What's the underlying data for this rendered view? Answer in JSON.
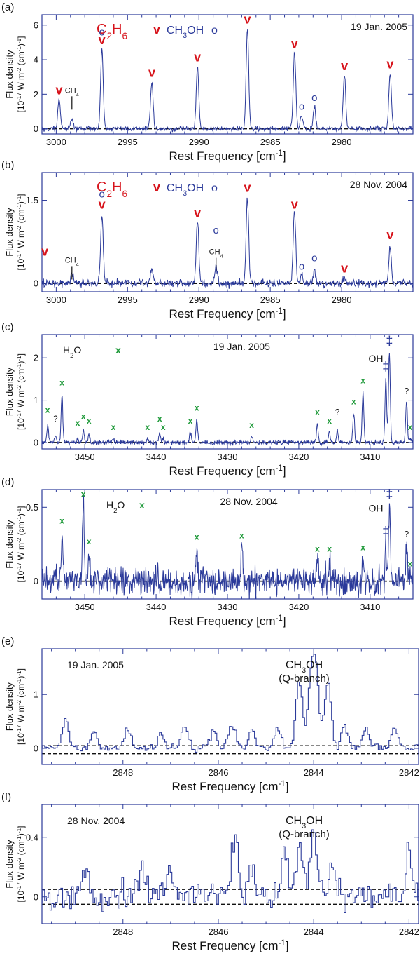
{
  "colors": {
    "trace": "#2b3a9a",
    "axis": "#2b3a9a",
    "ethane": "#d7131b",
    "water": "#1f9a3a",
    "methanol": "#2b3a9a",
    "text": "#111111"
  },
  "chart_data": [
    {
      "type": "line",
      "panel_label": "(a)",
      "date": "19 Jan. 2005",
      "xlabel": "Rest Frequency [cm-1]",
      "ylabel_line1": "Flux density",
      "ylabel_line2": "[10-17 W m-2 (cm-1)-1]",
      "xlim": [
        3001,
        2975
      ],
      "ylim": [
        -0.3,
        6.6
      ],
      "xticks": [
        3000,
        2995,
        2990,
        2985,
        2980
      ],
      "yticks": [
        0,
        2,
        4,
        6
      ],
      "baseline": 0,
      "noise": 0.1,
      "legend": [
        {
          "species": "C2H6",
          "marker": "v",
          "color": "ethane"
        },
        {
          "species": "CH3OH",
          "marker": "o",
          "color": "methanol"
        }
      ],
      "peaks": [
        {
          "x": 2999.8,
          "y": 1.7
        },
        {
          "x": 2998.9,
          "y": 0.6
        },
        {
          "x": 2996.8,
          "y": 4.6
        },
        {
          "x": 2993.3,
          "y": 2.7
        },
        {
          "x": 2990.1,
          "y": 3.6
        },
        {
          "x": 2986.6,
          "y": 5.8
        },
        {
          "x": 2983.3,
          "y": 4.4
        },
        {
          "x": 2982.8,
          "y": 0.8
        },
        {
          "x": 2981.9,
          "y": 1.3
        },
        {
          "x": 2979.8,
          "y": 3.1
        },
        {
          "x": 2976.6,
          "y": 3.2
        }
      ],
      "annotations": [
        {
          "text": "CH4",
          "x": 2998.9,
          "y": 2.0,
          "style": "tick-label"
        },
        {
          "text": "v",
          "x": 2999.8,
          "y": 2.0,
          "color": "ethane"
        },
        {
          "text": "v",
          "x": 2996.8,
          "y": 4.9,
          "color": "ethane"
        },
        {
          "text": "o",
          "x": 2996.8,
          "y": 5.4,
          "color": "methanol"
        },
        {
          "text": "v",
          "x": 2993.3,
          "y": 3.0,
          "color": "ethane"
        },
        {
          "text": "v",
          "x": 2990.1,
          "y": 3.9,
          "color": "ethane"
        },
        {
          "text": "v",
          "x": 2986.6,
          "y": 6.1,
          "color": "ethane"
        },
        {
          "text": "v",
          "x": 2983.3,
          "y": 4.7,
          "color": "ethane"
        },
        {
          "text": "o",
          "x": 2982.8,
          "y": 1.1,
          "color": "methanol"
        },
        {
          "text": "o",
          "x": 2981.9,
          "y": 1.6,
          "color": "methanol"
        },
        {
          "text": "v",
          "x": 2979.8,
          "y": 3.4,
          "color": "ethane"
        },
        {
          "text": "v",
          "x": 2976.6,
          "y": 3.5,
          "color": "ethane"
        }
      ]
    },
    {
      "type": "line",
      "panel_label": "(b)",
      "date": "28 Nov. 2004",
      "xlabel": "Rest Frequency [cm-1]",
      "ylabel_line1": "Flux density",
      "ylabel_line2": "[10-17 W m-2 (cm-1)-1]",
      "xlim": [
        3001,
        2975
      ],
      "ylim": [
        -0.15,
        2.0
      ],
      "xticks": [
        3000,
        2995,
        2990,
        2985,
        2980
      ],
      "yticks": [
        0,
        1.5
      ],
      "baseline": 0,
      "noise": 0.05,
      "legend": [
        {
          "species": "C2H6",
          "marker": "v",
          "color": "ethane"
        },
        {
          "species": "CH3OH",
          "marker": "o",
          "color": "methanol"
        }
      ],
      "peaks": [
        {
          "x": 2998.9,
          "y": 0.2
        },
        {
          "x": 2996.8,
          "y": 1.25
        },
        {
          "x": 2993.3,
          "y": 0.25
        },
        {
          "x": 2990.1,
          "y": 1.12
        },
        {
          "x": 2988.8,
          "y": 0.3
        },
        {
          "x": 2986.6,
          "y": 1.55
        },
        {
          "x": 2983.3,
          "y": 1.3
        },
        {
          "x": 2982.8,
          "y": 0.15
        },
        {
          "x": 2981.9,
          "y": 0.25
        },
        {
          "x": 2979.8,
          "y": 0.1
        },
        {
          "x": 2976.6,
          "y": 0.65
        }
      ],
      "annotations": [
        {
          "text": "v",
          "x": 3000.8,
          "y": 0.5,
          "color": "ethane"
        },
        {
          "text": "CH4",
          "x": 2998.9,
          "y": 0.35,
          "style": "tick-label"
        },
        {
          "text": "v",
          "x": 2996.8,
          "y": 1.35,
          "color": "ethane"
        },
        {
          "text": "o",
          "x": 2996.8,
          "y": 1.55,
          "color": "methanol"
        },
        {
          "text": "v",
          "x": 2990.1,
          "y": 1.2,
          "color": "ethane"
        },
        {
          "text": "o",
          "x": 2988.8,
          "y": 0.9,
          "color": "methanol"
        },
        {
          "text": "CH4",
          "x": 2988.8,
          "y": 0.5,
          "style": "tick-label"
        },
        {
          "text": "v",
          "x": 2986.6,
          "y": 1.65,
          "color": "ethane"
        },
        {
          "text": "v",
          "x": 2983.3,
          "y": 1.35,
          "color": "ethane"
        },
        {
          "text": "o",
          "x": 2982.8,
          "y": 0.25,
          "color": "methanol"
        },
        {
          "text": "o",
          "x": 2981.9,
          "y": 0.4,
          "color": "methanol"
        },
        {
          "text": "v",
          "x": 2979.8,
          "y": 0.2,
          "color": "ethane"
        },
        {
          "text": "v",
          "x": 2976.6,
          "y": 0.8,
          "color": "ethane"
        }
      ]
    },
    {
      "type": "line",
      "panel_label": "(c)",
      "date": "19 Jan. 2005",
      "xlabel": "Rest Frequency [cm-1]",
      "ylabel_line1": "Flux density",
      "ylabel_line2": "[10-17 W m-2 (cm-1)-1]",
      "xlim": [
        3456,
        3404
      ],
      "ylim": [
        -0.15,
        2.55
      ],
      "xticks": [
        3450,
        3440,
        3430,
        3420,
        3410
      ],
      "yticks": [
        0,
        1,
        2
      ],
      "baseline": 0,
      "noise": 0.04,
      "legend": [
        {
          "species": "H2O",
          "marker": "x",
          "color": "water"
        }
      ],
      "peaks": [
        {
          "x": 3455.2,
          "y": 0.4
        },
        {
          "x": 3454.1,
          "y": 0.15
        },
        {
          "x": 3453.2,
          "y": 1.15
        },
        {
          "x": 3451.0,
          "y": 0.1
        },
        {
          "x": 3450.2,
          "y": 0.3
        },
        {
          "x": 3449.4,
          "y": 0.2
        },
        {
          "x": 3446.0,
          "y": 0.1
        },
        {
          "x": 3441.2,
          "y": 0.1
        },
        {
          "x": 3439.5,
          "y": 0.25
        },
        {
          "x": 3439.0,
          "y": 0.1
        },
        {
          "x": 3435.2,
          "y": 0.25
        },
        {
          "x": 3434.3,
          "y": 0.55
        },
        {
          "x": 3426.6,
          "y": 0.15
        },
        {
          "x": 3417.4,
          "y": 0.45
        },
        {
          "x": 3415.7,
          "y": 0.25
        },
        {
          "x": 3414.6,
          "y": 0.3
        },
        {
          "x": 3412.3,
          "y": 0.7
        },
        {
          "x": 3411.0,
          "y": 1.2
        },
        {
          "x": 3407.8,
          "y": 1.5
        },
        {
          "x": 3407.3,
          "y": 2.1
        },
        {
          "x": 3404.9,
          "y": 0.95
        },
        {
          "x": 3404.4,
          "y": 0.1
        }
      ],
      "annotations": [
        {
          "text": "x",
          "x": 3455.2,
          "y": 0.7,
          "color": "water"
        },
        {
          "text": "?",
          "x": 3454.1,
          "y": 0.5,
          "color": "text"
        },
        {
          "text": "x",
          "x": 3453.2,
          "y": 1.35,
          "color": "water"
        },
        {
          "text": "x",
          "x": 3451.0,
          "y": 0.4,
          "color": "water"
        },
        {
          "text": "x",
          "x": 3450.2,
          "y": 0.55,
          "color": "water"
        },
        {
          "text": "x",
          "x": 3449.4,
          "y": 0.45,
          "color": "water"
        },
        {
          "text": "x",
          "x": 3446.0,
          "y": 0.3,
          "color": "water"
        },
        {
          "text": "x",
          "x": 3441.2,
          "y": 0.3,
          "color": "water"
        },
        {
          "text": "x",
          "x": 3439.5,
          "y": 0.5,
          "color": "water"
        },
        {
          "text": "x",
          "x": 3439.0,
          "y": 0.3,
          "color": "water"
        },
        {
          "text": "x",
          "x": 3435.2,
          "y": 0.45,
          "color": "water"
        },
        {
          "text": "x",
          "x": 3434.3,
          "y": 0.75,
          "color": "water"
        },
        {
          "text": "x",
          "x": 3426.6,
          "y": 0.35,
          "color": "water"
        },
        {
          "text": "x",
          "x": 3417.4,
          "y": 0.65,
          "color": "water"
        },
        {
          "text": "x",
          "x": 3415.7,
          "y": 0.45,
          "color": "water"
        },
        {
          "text": "?",
          "x": 3414.6,
          "y": 0.65,
          "color": "text"
        },
        {
          "text": "x",
          "x": 3412.3,
          "y": 0.9,
          "color": "water"
        },
        {
          "text": "x",
          "x": 3411.0,
          "y": 1.4,
          "color": "water"
        },
        {
          "text": "OH",
          "x": 3409.2,
          "y": 1.9,
          "color": "text"
        },
        {
          "text": "‡",
          "x": 3407.8,
          "y": 1.7,
          "color": "methanol"
        },
        {
          "text": "‡",
          "x": 3407.3,
          "y": 2.3,
          "color": "methanol"
        },
        {
          "text": "?",
          "x": 3404.9,
          "y": 1.15,
          "color": "text"
        },
        {
          "text": "x",
          "x": 3404.4,
          "y": 0.3,
          "color": "water"
        }
      ]
    },
    {
      "type": "line",
      "panel_label": "(d)",
      "date": "28 Nov. 2004",
      "xlabel": "Rest Frequency [cm-1]",
      "ylabel_line1": "Flux density",
      "ylabel_line2": "[10-17 W m-2 (cm-1)-1]",
      "xlim": [
        3456,
        3404
      ],
      "ylim": [
        -0.12,
        0.62
      ],
      "xticks": [
        3450,
        3440,
        3430,
        3420,
        3410
      ],
      "yticks": [
        0,
        0.5
      ],
      "baseline": 0,
      "noise": 0.065,
      "legend": [
        {
          "species": "H2O",
          "marker": "x",
          "color": "water"
        }
      ],
      "peaks": [
        {
          "x": 3453.2,
          "y": 0.34
        },
        {
          "x": 3450.2,
          "y": 0.53
        },
        {
          "x": 3449.4,
          "y": 0.2
        },
        {
          "x": 3434.3,
          "y": 0.23
        },
        {
          "x": 3428.0,
          "y": 0.24
        },
        {
          "x": 3417.4,
          "y": 0.15
        },
        {
          "x": 3415.7,
          "y": 0.16
        },
        {
          "x": 3411.0,
          "y": 0.17
        },
        {
          "x": 3407.8,
          "y": 0.25
        },
        {
          "x": 3407.3,
          "y": 0.5
        },
        {
          "x": 3404.9,
          "y": 0.25
        },
        {
          "x": 3404.4,
          "y": 0.05
        }
      ],
      "annotations": [
        {
          "text": "x",
          "x": 3453.2,
          "y": 0.39,
          "color": "water"
        },
        {
          "text": "x",
          "x": 3450.2,
          "y": 0.57,
          "color": "water"
        },
        {
          "text": "x",
          "x": 3449.4,
          "y": 0.25,
          "color": "water"
        },
        {
          "text": "x",
          "x": 3434.3,
          "y": 0.28,
          "color": "water"
        },
        {
          "text": "x",
          "x": 3428.0,
          "y": 0.29,
          "color": "water"
        },
        {
          "text": "x",
          "x": 3417.4,
          "y": 0.2,
          "color": "water"
        },
        {
          "text": "x",
          "x": 3415.7,
          "y": 0.2,
          "color": "water"
        },
        {
          "text": "x",
          "x": 3411.0,
          "y": 0.21,
          "color": "water"
        },
        {
          "text": "OH",
          "x": 3409.2,
          "y": 0.47,
          "color": "text"
        },
        {
          "text": "‡",
          "x": 3407.8,
          "y": 0.31,
          "color": "methanol"
        },
        {
          "text": "‡",
          "x": 3407.3,
          "y": 0.56,
          "color": "methanol"
        },
        {
          "text": "?",
          "x": 3404.9,
          "y": 0.3,
          "color": "text"
        },
        {
          "text": "x",
          "x": 3404.4,
          "y": 0.1,
          "color": "water"
        }
      ]
    },
    {
      "type": "line",
      "panel_label": "(e)",
      "date": "19 Jan. 2005",
      "xlabel": "Rest Frequency [cm-1]",
      "ylabel_line1": "Flux density",
      "ylabel_line2": "[10-17 W m-2 (cm-1)-1]",
      "xlim": [
        2849.7,
        2841.8
      ],
      "ylim": [
        -0.3,
        1.85
      ],
      "xticks": [
        2848,
        2846,
        2844,
        2842
      ],
      "yticks": [
        0,
        1
      ],
      "baseline_upper": 0.05,
      "baseline_lower": -0.1,
      "noise": 0.05,
      "title": "CH3OH",
      "subtitle": "(Q-branch)",
      "title_x": 2844.2,
      "peaks": [
        {
          "x": 2849.2,
          "y": 0.5
        },
        {
          "x": 2848.6,
          "y": 0.3
        },
        {
          "x": 2847.9,
          "y": 0.35
        },
        {
          "x": 2847.2,
          "y": 0.3
        },
        {
          "x": 2846.7,
          "y": 0.4
        },
        {
          "x": 2846.1,
          "y": 0.35
        },
        {
          "x": 2845.7,
          "y": 0.45
        },
        {
          "x": 2845.3,
          "y": 0.35
        },
        {
          "x": 2844.75,
          "y": 0.35
        },
        {
          "x": 2844.3,
          "y": 1.3
        },
        {
          "x": 2844.05,
          "y": 1.1
        },
        {
          "x": 2843.95,
          "y": 1.2
        },
        {
          "x": 2843.7,
          "y": 1.25
        },
        {
          "x": 2843.35,
          "y": 0.45
        },
        {
          "x": 2842.9,
          "y": 0.35
        },
        {
          "x": 2842.3,
          "y": 0.4
        }
      ],
      "annotations": []
    },
    {
      "type": "line",
      "panel_label": "(f)",
      "date": "28 Nov. 2004",
      "xlabel": "Rest Frequency [cm-1]",
      "ylabel_line1": "Flux density",
      "ylabel_line2": "[10-17 W m-2 (cm-1)-1]",
      "xlim": [
        2849.7,
        2841.8
      ],
      "ylim": [
        -0.18,
        0.62
      ],
      "xticks": [
        2848,
        2846,
        2844,
        2842
      ],
      "yticks": [
        0,
        0.4
      ],
      "baseline_upper": 0.05,
      "baseline_lower": -0.05,
      "noise": 0.07,
      "title": "CH3OH",
      "subtitle": "(Q-branch)",
      "title_x": 2844.2,
      "peaks": [
        {
          "x": 2848.8,
          "y": 0.15
        },
        {
          "x": 2847.6,
          "y": 0.2
        },
        {
          "x": 2847.0,
          "y": 0.15
        },
        {
          "x": 2845.65,
          "y": 0.45
        },
        {
          "x": 2845.3,
          "y": 0.2
        },
        {
          "x": 2844.6,
          "y": 0.35
        },
        {
          "x": 2844.3,
          "y": 0.35
        },
        {
          "x": 2844.0,
          "y": 0.45
        },
        {
          "x": 2843.6,
          "y": 0.25
        },
        {
          "x": 2842.0,
          "y": 0.3
        }
      ],
      "annotations": []
    }
  ]
}
